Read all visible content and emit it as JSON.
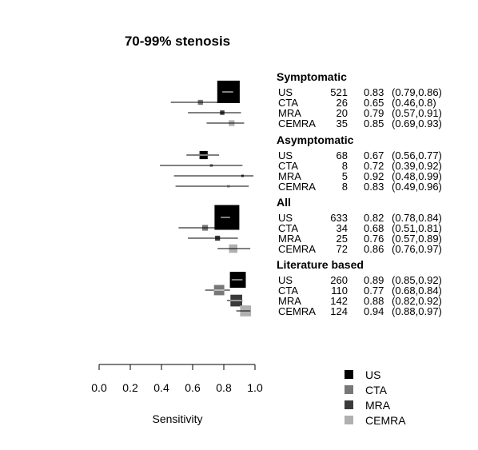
{
  "chart_data": {
    "type": "forest",
    "title": "70-99% stenosis",
    "xlabel": "Sensitivity",
    "xlim": [
      0,
      1
    ],
    "xticks": [
      "0.0",
      "0.2",
      "0.4",
      "0.6",
      "0.8",
      "1.0"
    ],
    "grid": false,
    "legend_position": "bottom-right",
    "colors": {
      "US": "#000000",
      "CTA": "#777777",
      "MRA": "#3a3a3a",
      "CEMRA": "#b0b0b0"
    },
    "legend": [
      "US",
      "CTA",
      "MRA",
      "CEMRA"
    ],
    "groups": [
      {
        "label": "Symptomatic",
        "rows": [
          {
            "method": "US",
            "n": "521",
            "est": 0.83,
            "lo": 0.79,
            "hi": 0.86,
            "ci_text": "0.83",
            "range_text": "(0.79,0.86)"
          },
          {
            "method": "CTA",
            "n": "26",
            "est": 0.65,
            "lo": 0.46,
            "hi": 0.8,
            "ci_text": "0.65",
            "range_text": "(0.46,0.8)"
          },
          {
            "method": "MRA",
            "n": "20",
            "est": 0.79,
            "lo": 0.57,
            "hi": 0.91,
            "ci_text": "0.79",
            "range_text": "(0.57,0.91)"
          },
          {
            "method": "CEMRA",
            "n": "35",
            "est": 0.85,
            "lo": 0.69,
            "hi": 0.93,
            "ci_text": "0.85",
            "range_text": "(0.69,0.93)"
          }
        ]
      },
      {
        "label": "Asymptomatic",
        "rows": [
          {
            "method": "US",
            "n": "68",
            "est": 0.67,
            "lo": 0.56,
            "hi": 0.77,
            "ci_text": "0.67",
            "range_text": "(0.56,0.77)"
          },
          {
            "method": "CTA",
            "n": "8",
            "est": 0.72,
            "lo": 0.39,
            "hi": 0.92,
            "ci_text": "0.72",
            "range_text": "(0.39,0.92)"
          },
          {
            "method": "MRA",
            "n": "5",
            "est": 0.92,
            "lo": 0.48,
            "hi": 0.99,
            "ci_text": "0.92",
            "range_text": "(0.48,0.99)"
          },
          {
            "method": "CEMRA",
            "n": "8",
            "est": 0.83,
            "lo": 0.49,
            "hi": 0.96,
            "ci_text": "0.83",
            "range_text": "(0.49,0.96)"
          }
        ]
      },
      {
        "label": "All",
        "rows": [
          {
            "method": "US",
            "n": "633",
            "est": 0.82,
            "lo": 0.78,
            "hi": 0.84,
            "ci_text": "0.82",
            "range_text": "(0.78,0.84)"
          },
          {
            "method": "CTA",
            "n": "34",
            "est": 0.68,
            "lo": 0.51,
            "hi": 0.81,
            "ci_text": "0.68",
            "range_text": "(0.51,0.81)"
          },
          {
            "method": "MRA",
            "n": "25",
            "est": 0.76,
            "lo": 0.57,
            "hi": 0.89,
            "ci_text": "0.76",
            "range_text": "(0.57,0.89)"
          },
          {
            "method": "CEMRA",
            "n": "72",
            "est": 0.86,
            "lo": 0.76,
            "hi": 0.97,
            "ci_text": "0.86",
            "range_text": "(0.76,0.97)"
          }
        ]
      },
      {
        "label": "Literature based",
        "rows": [
          {
            "method": "US",
            "n": "260",
            "est": 0.89,
            "lo": 0.85,
            "hi": 0.92,
            "ci_text": "0.89",
            "range_text": "(0.85,0.92)"
          },
          {
            "method": "CTA",
            "n": "110",
            "est": 0.77,
            "lo": 0.68,
            "hi": 0.84,
            "ci_text": "0.77",
            "range_text": "(0.68,0.84)"
          },
          {
            "method": "MRA",
            "n": "142",
            "est": 0.88,
            "lo": 0.82,
            "hi": 0.92,
            "ci_text": "0.88",
            "range_text": "(0.82,0.92)"
          },
          {
            "method": "CEMRA",
            "n": "124",
            "est": 0.94,
            "lo": 0.88,
            "hi": 0.97,
            "ci_text": "0.94",
            "range_text": "(0.88,0.97)"
          }
        ]
      }
    ]
  }
}
